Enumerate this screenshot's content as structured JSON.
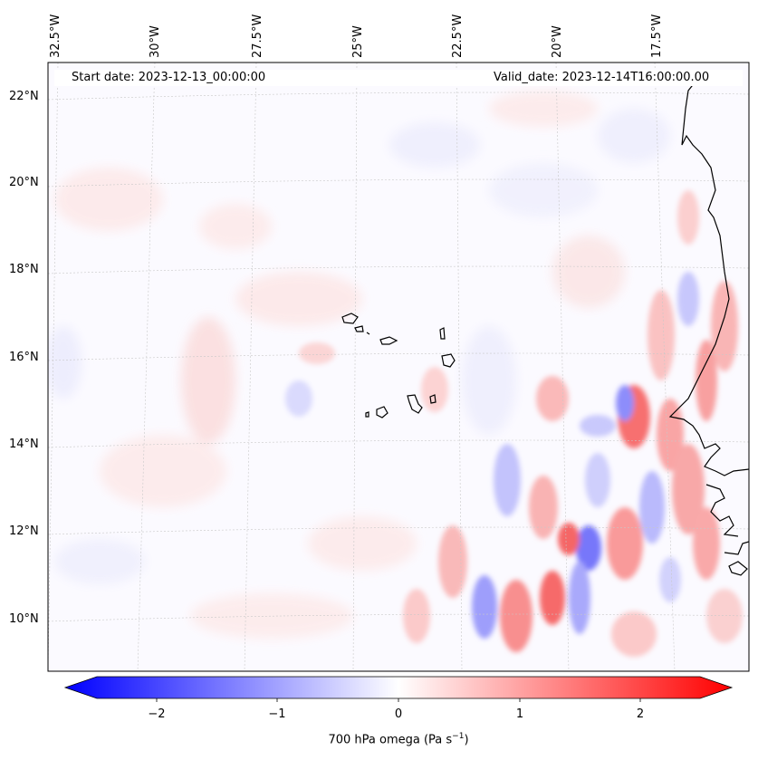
{
  "header": {
    "start_date": "Start date: 2023-12-13_00:00:00",
    "valid_date": "Valid_date: 2023-12-14T16:00:00.00"
  },
  "axes": {
    "lon_labels": [
      "32.5°W",
      "30°W",
      "27.5°W",
      "25°W",
      "22.5°W",
      "20°W",
      "17.5°W"
    ],
    "lat_labels": [
      "22°N",
      "20°N",
      "18°N",
      "16°N",
      "14°N",
      "12°N",
      "10°N"
    ]
  },
  "colorbar": {
    "ticks": [
      "−2",
      "−1",
      "0",
      "1",
      "2"
    ],
    "label": "700 hPa omega (Pa s",
    "label_sup": "−1",
    "label_end": ")",
    "low_color": "#0000ff",
    "high_color": "#ff0000"
  },
  "field": {
    "variable": "700 hPa omega",
    "units": "Pa s-1",
    "range": [
      -2.5,
      2.5
    ],
    "gridlines": true,
    "coastline_color": "#000000"
  }
}
